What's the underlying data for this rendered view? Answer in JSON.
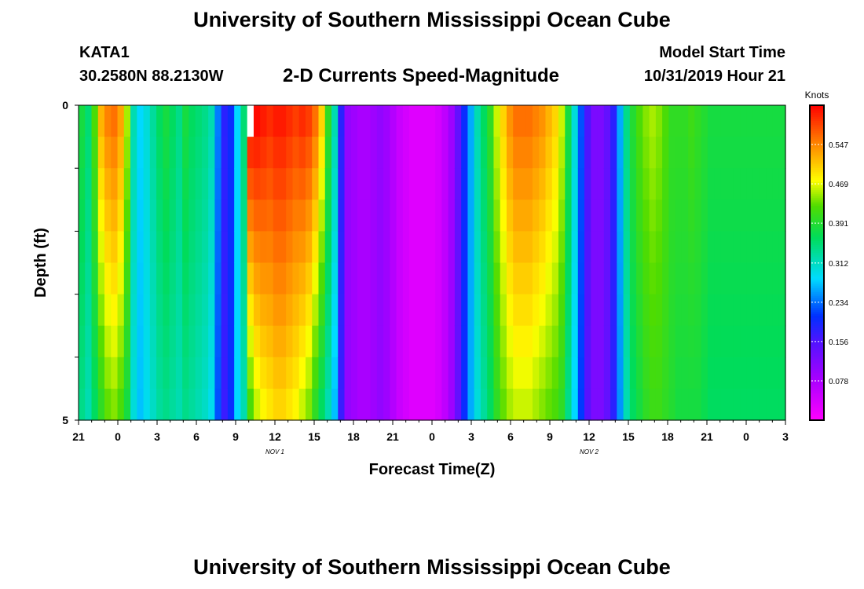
{
  "page": {
    "title_top": "University of Southern Mississippi Ocean Cube",
    "title_bottom": "University of Southern Mississippi Ocean Cube",
    "station_id": "KATA1",
    "station_coords": "30.2580N 88.2130W",
    "plot_title": "2-D Currents Speed-Magnitude",
    "start_label": "Model Start Time",
    "start_value": "10/31/2019 Hour 21"
  },
  "chart_data": {
    "type": "heatmap",
    "title": "2-D Currents Speed-Magnitude",
    "xlabel": "Forecast Time(Z)",
    "ylabel": "Depth (ft)",
    "x_hours": [
      21,
      22,
      23,
      0,
      1,
      2,
      3,
      4,
      5,
      6,
      7,
      8,
      9,
      10,
      11,
      12,
      13,
      14,
      15,
      16,
      17,
      18,
      19,
      20,
      21,
      22,
      23,
      0,
      1,
      2,
      3,
      4,
      5,
      6,
      7,
      8,
      9,
      10,
      11,
      12,
      13,
      14,
      15,
      16,
      17,
      18,
      19,
      20,
      21,
      22,
      23,
      0,
      1,
      2,
      3
    ],
    "x_tick_labels": [
      "21",
      "0",
      "3",
      "6",
      "9",
      "12",
      "15",
      "18",
      "21",
      "0",
      "3",
      "6",
      "9",
      "12",
      "15",
      "18",
      "21",
      "0",
      "3"
    ],
    "date_labels": [
      {
        "text": "NOV 1",
        "hour_index": 15
      },
      {
        "text": "NOV 2",
        "hour_index": 39
      }
    ],
    "y_tick_labels": [
      "0",
      "5"
    ],
    "ylim": [
      0,
      5
    ],
    "depths_ft": [
      0.25,
      0.75,
      1.25,
      1.75,
      2.25,
      2.75,
      3.25,
      3.75,
      4.25,
      4.75
    ],
    "colorbar": {
      "title": "Knots",
      "ticks": [
        0.078,
        0.156,
        0.234,
        0.312,
        0.391,
        0.469,
        0.547
      ],
      "tick_labels": [
        "0.078",
        "0.156",
        "0.234",
        "0.312",
        "0.391",
        "0.469",
        "0.547"
      ],
      "range": [
        0,
        0.625
      ]
    },
    "profile_surface": [
      0.38,
      0.35,
      0.42,
      0.52,
      0.55,
      0.56,
      0.53,
      0.45,
      0.32,
      0.28,
      0.3,
      0.33,
      0.36,
      0.38,
      0.36,
      0.34,
      0.38,
      0.36,
      0.35,
      0.34,
      0.32,
      0.24,
      0.18,
      0.2,
      0.28,
      0.35,
      0.62,
      0.62,
      0.61,
      0.6,
      0.61,
      0.61,
      0.6,
      0.59,
      0.6,
      0.59,
      0.56,
      0.5,
      0.4,
      0.32,
      0.18,
      0.1,
      0.09,
      0.08,
      0.08,
      0.09,
      0.1,
      0.09,
      0.07,
      0.05,
      0.04,
      0.03,
      0.03,
      0.03,
      0.03,
      0.04,
      0.06,
      0.09,
      0.14,
      0.2,
      0.26,
      0.32,
      0.36,
      0.4,
      0.46,
      0.5,
      0.54,
      0.56,
      0.56,
      0.56,
      0.55,
      0.54,
      0.52,
      0.5,
      0.46,
      0.38,
      0.3,
      0.22,
      0.16,
      0.12,
      0.12,
      0.14,
      0.18,
      0.26,
      0.34,
      0.39,
      0.42,
      0.44,
      0.45,
      0.44,
      0.42,
      0.4,
      0.4,
      0.4,
      0.41,
      0.4,
      0.39,
      0.38,
      0.38,
      0.38,
      0.38,
      0.38,
      0.38,
      0.38,
      0.38,
      0.38,
      0.38,
      0.38,
      0.38
    ],
    "profile_bottom": [
      0.34,
      0.32,
      0.36,
      0.4,
      0.43,
      0.44,
      0.42,
      0.38,
      0.3,
      0.27,
      0.29,
      0.31,
      0.33,
      0.34,
      0.33,
      0.32,
      0.34,
      0.33,
      0.32,
      0.31,
      0.29,
      0.22,
      0.17,
      0.2,
      0.28,
      0.32,
      0.42,
      0.46,
      0.48,
      0.49,
      0.5,
      0.5,
      0.49,
      0.48,
      0.46,
      0.44,
      0.4,
      0.36,
      0.32,
      0.27,
      0.17,
      0.1,
      0.09,
      0.08,
      0.08,
      0.09,
      0.1,
      0.09,
      0.07,
      0.05,
      0.04,
      0.03,
      0.03,
      0.03,
      0.03,
      0.04,
      0.06,
      0.09,
      0.14,
      0.2,
      0.26,
      0.3,
      0.33,
      0.36,
      0.4,
      0.43,
      0.45,
      0.46,
      0.46,
      0.46,
      0.45,
      0.44,
      0.43,
      0.42,
      0.4,
      0.34,
      0.28,
      0.21,
      0.15,
      0.12,
      0.12,
      0.14,
      0.18,
      0.25,
      0.32,
      0.36,
      0.38,
      0.4,
      0.41,
      0.41,
      0.4,
      0.39,
      0.38,
      0.38,
      0.38,
      0.38,
      0.37,
      0.36,
      0.36,
      0.36,
      0.36,
      0.36,
      0.36,
      0.36,
      0.36,
      0.36,
      0.36,
      0.36,
      0.36
    ],
    "missing_cells": [
      {
        "column": 26,
        "row": 0
      }
    ]
  }
}
